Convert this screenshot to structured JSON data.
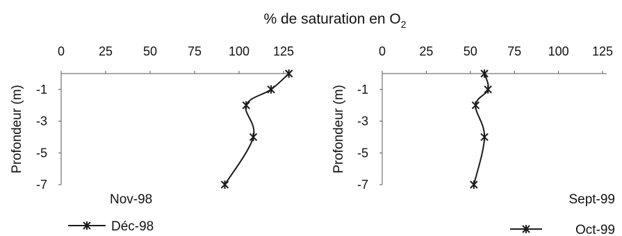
{
  "figure": {
    "title_prefix": "% de saturation en O",
    "title_subscript": "2"
  },
  "chart_data": [
    {
      "type": "line",
      "panel_label": "Nov-98",
      "xlabel": "",
      "ylabel": "Profondeur (m)",
      "xlim": [
        0,
        125
      ],
      "ylim": [
        -7,
        0
      ],
      "x_ticks": [
        "0",
        "25",
        "50",
        "75",
        "100",
        "125"
      ],
      "y_ticks": [
        "-1",
        "-3",
        "-5",
        "-7"
      ],
      "series": [
        {
          "name": "Déc-98",
          "points": [
            {
              "x": 128,
              "y": 0
            },
            {
              "x": 118,
              "y": -1
            },
            {
              "x": 104,
              "y": -2
            },
            {
              "x": 108,
              "y": -4
            },
            {
              "x": 92,
              "y": -7
            }
          ]
        }
      ],
      "legend_position": "bottom-left"
    },
    {
      "type": "line",
      "panel_label": "Sept-99",
      "xlabel": "",
      "ylabel": "Profondeur (m)",
      "xlim": [
        0,
        125
      ],
      "ylim": [
        -7,
        0
      ],
      "x_ticks": [
        "0",
        "25",
        "50",
        "75",
        "100",
        "125"
      ],
      "y_ticks": [
        "-1",
        "-3",
        "-5",
        "-7"
      ],
      "series": [
        {
          "name": "Oct-99",
          "points": [
            {
              "x": 58,
              "y": 0
            },
            {
              "x": 60,
              "y": -1
            },
            {
              "x": 53,
              "y": -2
            },
            {
              "x": 58,
              "y": -4
            },
            {
              "x": 52,
              "y": -7
            }
          ]
        }
      ],
      "legend_position": "bottom-right"
    }
  ],
  "colors": {
    "line": "#1a1a1a",
    "axis": "#555555",
    "text": "#111111"
  }
}
